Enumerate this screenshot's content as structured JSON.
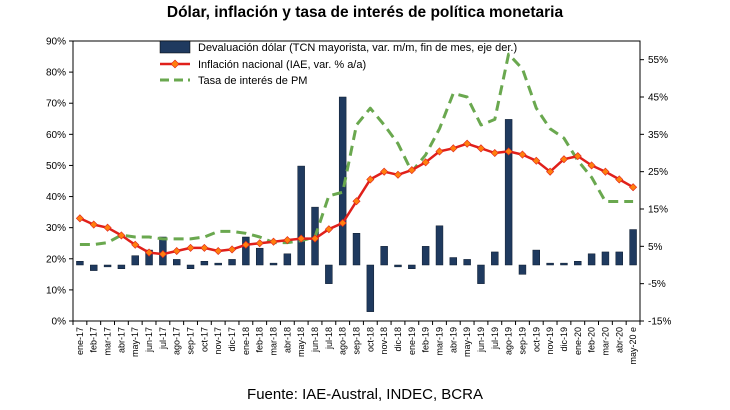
{
  "title": "Dólar, inflación y tasa de interés de política monetaria",
  "source": "Fuente: IAE-Austral, INDEC, BCRA",
  "chart_data": {
    "type": "bar-line",
    "categories": [
      "ene-17",
      "feb-17",
      "mar-17",
      "abr-17",
      "may-17",
      "jun-17",
      "jul-17",
      "ago-17",
      "sep-17",
      "oct-17",
      "nov-17",
      "dic-17",
      "ene-18",
      "feb-18",
      "mar-18",
      "abr-18",
      "may-18",
      "jun-18",
      "jul-18",
      "ago-18",
      "sep-18",
      "oct-18",
      "nov-18",
      "dic-18",
      "ene-19",
      "feb-19",
      "mar-19",
      "abr-19",
      "may-19",
      "jun-19",
      "jul-19",
      "ago-19",
      "sep-19",
      "oct-19",
      "nov-19",
      "dic-19",
      "ene-20",
      "feb-20",
      "mar-20",
      "abr-20",
      "may-20 e"
    ],
    "left_axis": {
      "min": 0,
      "max": 90,
      "step": 10,
      "suffix": "%",
      "ticks": [
        "0%",
        "10%",
        "20%",
        "30%",
        "40%",
        "50%",
        "60%",
        "70%",
        "80%",
        "90%"
      ]
    },
    "right_axis": {
      "min": -15,
      "max": 60,
      "step": 10,
      "suffix": "%",
      "ticks": [
        "-15%",
        "-5%",
        "5%",
        "15%",
        "25%",
        "35%",
        "45%",
        "55%"
      ]
    },
    "series": [
      {
        "name": "Devaluación dólar (TCN mayorista, var. m/m, fin de mes, eje der.)",
        "type": "bar",
        "axis": "right",
        "color": "#1f3a5f",
        "values": [
          1.0,
          -1.5,
          -0.5,
          -1.0,
          2.5,
          4.0,
          7.5,
          1.5,
          -1.0,
          1.0,
          0.5,
          1.5,
          7.5,
          4.5,
          0.5,
          3.0,
          26.5,
          15.5,
          -5.0,
          45.0,
          8.5,
          -12.5,
          5.0,
          -0.5,
          -1.0,
          5.0,
          10.5,
          2.0,
          1.5,
          -5.0,
          3.5,
          39.0,
          -2.5,
          4.0,
          0.5,
          0.5,
          1.0,
          3.0,
          3.5,
          3.5,
          9.5
        ]
      },
      {
        "name": "Inflación nacional (IAE, var. % a/a)",
        "type": "line",
        "axis": "left",
        "color": "#e0201b",
        "marker": "diamond",
        "values": [
          33.0,
          31.0,
          30.0,
          27.5,
          24.5,
          22.0,
          21.5,
          22.5,
          23.5,
          23.5,
          22.5,
          23.0,
          24.5,
          25.0,
          25.5,
          26.0,
          26.5,
          26.5,
          29.5,
          31.5,
          38.5,
          45.5,
          48.0,
          47.0,
          48.5,
          51.0,
          54.5,
          55.5,
          57.0,
          55.5,
          54.0,
          54.5,
          53.5,
          51.5,
          48.0,
          52.0,
          53.0,
          50.0,
          48.0,
          45.5,
          43.0
        ]
      },
      {
        "name": "Tasa de interés de PM",
        "type": "line",
        "axis": "right",
        "color": "#6aa84f",
        "dash": "dashed",
        "values": [
          5.5,
          5.5,
          6.0,
          8.0,
          7.5,
          7.5,
          7.0,
          7.0,
          7.0,
          7.5,
          9.0,
          9.0,
          8.5,
          7.5,
          6.0,
          6.0,
          6.5,
          7.5,
          18.5,
          19.5,
          37.5,
          42.0,
          37.5,
          32.5,
          25.0,
          29.5,
          36.5,
          46.0,
          45.0,
          37.5,
          39.0,
          56.5,
          52.5,
          42.0,
          36.5,
          34.0,
          28.0,
          23.5,
          17.0,
          17.0,
          17.0
        ]
      }
    ]
  }
}
